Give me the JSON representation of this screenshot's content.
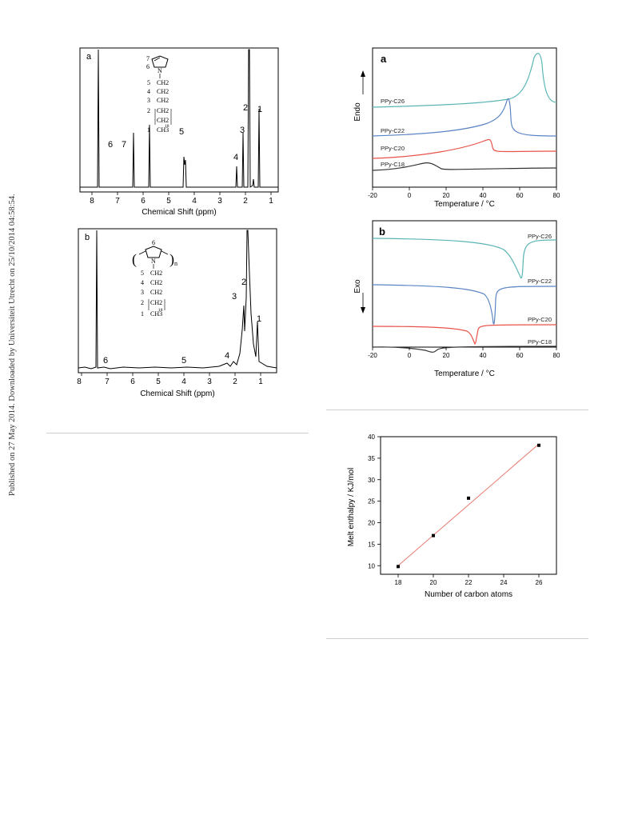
{
  "side_note": "Published on 27 May 2014. Downloaded by Universiteit Utrecht on 25/10/2014 04:58:54.",
  "nmr_a": {
    "panel_label": "a",
    "xlabel": "Chemical Shift (ppm)",
    "ticks": [
      "8",
      "7",
      "6",
      "5",
      "4",
      "3",
      "2",
      "1"
    ],
    "peak_labels": [
      "1",
      "2",
      "3",
      "4",
      "5",
      "6",
      "7"
    ],
    "structure": {
      "ring_numbers": [
        "7",
        "6"
      ],
      "ring_atom": "N",
      "chain": [
        "CH2",
        "CH2",
        "CH2",
        "CH2",
        "CH2",
        "CH3"
      ],
      "chain_numbers": [
        "5",
        "4",
        "3",
        "2",
        "1"
      ],
      "subscript": "18"
    }
  },
  "nmr_b": {
    "panel_label": "b",
    "xlabel": "Chemical Shift (ppm)",
    "ticks": [
      "8",
      "7",
      "6",
      "5",
      "4",
      "3",
      "2",
      "1"
    ],
    "peak_labels": [
      "1",
      "2",
      "3",
      "4",
      "5",
      "6"
    ],
    "structure": {
      "ring_number": "6",
      "ring_atom": "N",
      "repeat": "n",
      "chain": [
        "CH2",
        "CH2",
        "CH2",
        "CH2",
        "CH3"
      ],
      "chain_numbers": [
        "5",
        "4",
        "3",
        "2",
        "1"
      ],
      "subscript": "18"
    }
  },
  "chart_data": [
    {
      "type": "line",
      "panel_label": "a",
      "xlabel": "Temperature / °C",
      "ylabel": "Endo",
      "xlim": [
        -20,
        80
      ],
      "xticks": [
        -20,
        0,
        20,
        40,
        60,
        80
      ],
      "series": [
        {
          "name": "PPy-C26",
          "color": "#5bb5b5",
          "peak_x": 68
        },
        {
          "name": "PPy-C22",
          "color": "#5b84c4",
          "peak_x": 55
        },
        {
          "name": "PPy-C20",
          "color": "#e8524a",
          "peak_x": 45
        },
        {
          "name": "PPy-C18",
          "color": "#333333",
          "peak_x": 20
        }
      ]
    },
    {
      "type": "line",
      "panel_label": "b",
      "xlabel": "Temperature / °C",
      "ylabel": "Exo",
      "xlim": [
        -20,
        80
      ],
      "xticks": [
        -20,
        0,
        20,
        40,
        60,
        80
      ],
      "series": [
        {
          "name": "PPy-C26",
          "color": "#5bb5b5",
          "peak_x": 61
        },
        {
          "name": "PPy-C22",
          "color": "#5b84c4",
          "peak_x": 46
        },
        {
          "name": "PPy-C20",
          "color": "#e8524a",
          "peak_x": 36
        },
        {
          "name": "PPy-C18",
          "color": "#333333",
          "peak_x": 17
        }
      ]
    },
    {
      "type": "scatter",
      "xlabel": "Number of carbon atoms",
      "ylabel": "Melt enthalpy / KJ/mol",
      "xlim": [
        17,
        27
      ],
      "ylim": [
        8,
        40
      ],
      "xticks": [
        18,
        20,
        22,
        24,
        26
      ],
      "yticks": [
        10,
        15,
        20,
        25,
        30,
        35,
        40
      ],
      "x": [
        18,
        20,
        22,
        26
      ],
      "y": [
        9.8,
        17.0,
        25.7,
        38.0
      ],
      "fit_line": {
        "x": [
          18,
          26
        ],
        "y": [
          10.0,
          38.3
        ],
        "color": "#e8786e"
      },
      "marker_color": "#000000"
    }
  ]
}
